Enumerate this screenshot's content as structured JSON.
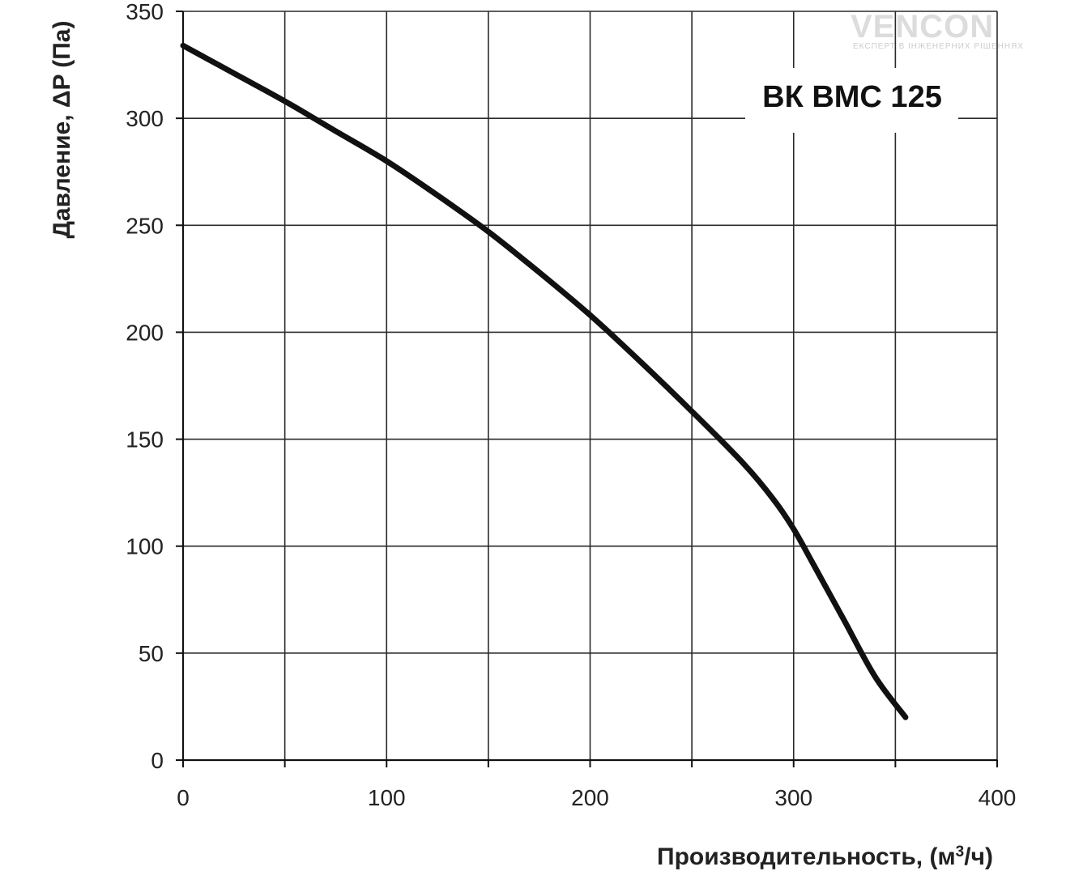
{
  "watermark": {
    "brand": "VENCON",
    "tagline": "ЕКСПЕРТ В ІНЖЕНЕРНИХ РІШЕННЯХ",
    "accent_color": "#8fd3a5"
  },
  "chart_data": {
    "type": "line",
    "title": "",
    "xlabel": "Производительность, (м³/ч)",
    "ylabel": "Давление, ΔP (Па)",
    "xlim": [
      0,
      400
    ],
    "ylim": [
      0,
      350
    ],
    "x_ticks": [
      0,
      100,
      200,
      300,
      400
    ],
    "y_ticks": [
      0,
      50,
      100,
      150,
      200,
      250,
      300,
      350
    ],
    "x_gridlines": [
      0,
      50,
      100,
      150,
      200,
      250,
      300,
      350,
      400
    ],
    "grid": true,
    "line_color": "#111111",
    "series": [
      {
        "name": "ВК ВМС 125",
        "x": [
          0,
          25,
          50,
          75,
          100,
          125,
          150,
          175,
          200,
          225,
          250,
          275,
          290,
          300,
          310,
          325,
          340,
          355
        ],
        "y": [
          334,
          321,
          308,
          294,
          280,
          264,
          247,
          228,
          208,
          186,
          163,
          139,
          122,
          108,
          91,
          65,
          39,
          20
        ]
      }
    ]
  }
}
